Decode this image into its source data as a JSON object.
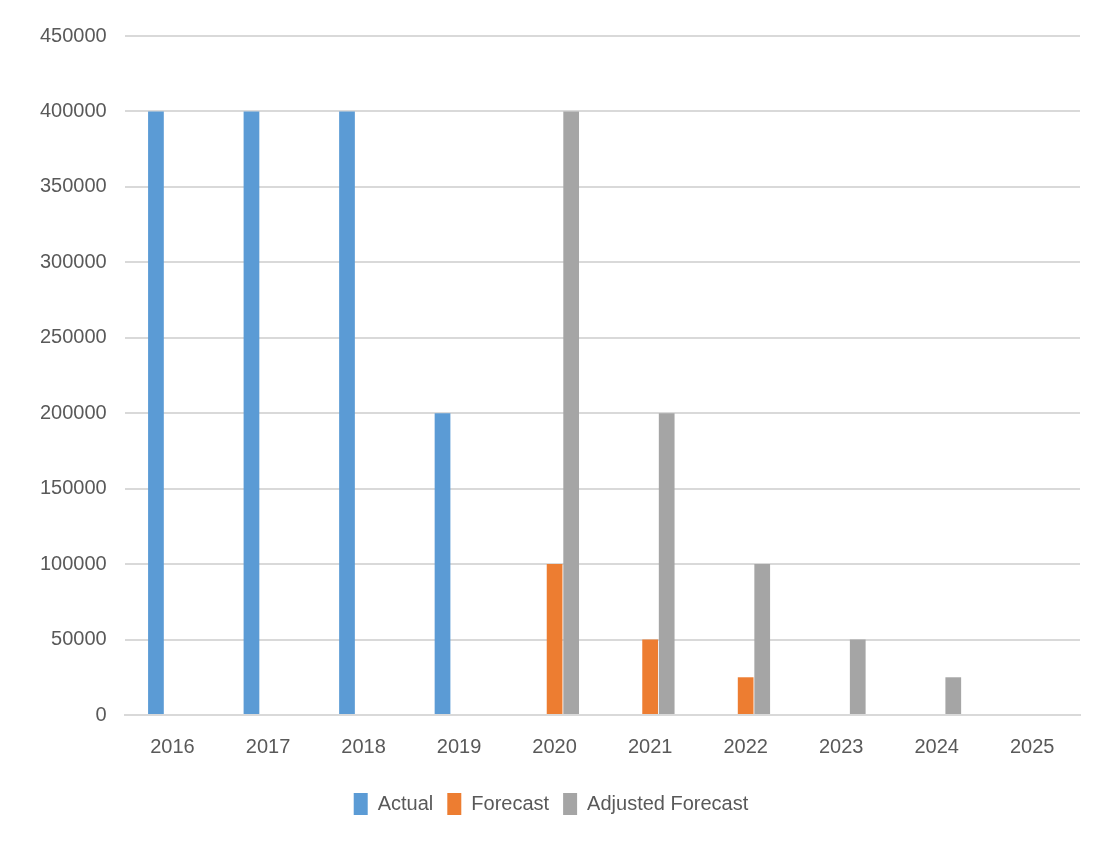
{
  "chart_data": {
    "type": "bar",
    "categories": [
      "2016",
      "2017",
      "2018",
      "2019",
      "2020",
      "2021",
      "2022",
      "2023",
      "2024",
      "2025"
    ],
    "series": [
      {
        "name": "Actual",
        "color": "#5b9bd5",
        "values": [
          400000,
          400000,
          400000,
          200000,
          null,
          null,
          null,
          null,
          null,
          null
        ]
      },
      {
        "name": "Forecast",
        "color": "#ed7d31",
        "values": [
          null,
          null,
          null,
          null,
          100000,
          50000,
          25000,
          null,
          null,
          null
        ]
      },
      {
        "name": "Adjusted Forecast",
        "color": "#a5a5a5",
        "values": [
          null,
          null,
          null,
          null,
          400000,
          200000,
          100000,
          50000,
          25000,
          null
        ]
      }
    ],
    "ylim": [
      0,
      450000
    ],
    "yticks": [
      0,
      50000,
      100000,
      150000,
      200000,
      250000,
      300000,
      350000,
      400000,
      450000
    ],
    "grid": "y",
    "legend": "bottom"
  }
}
